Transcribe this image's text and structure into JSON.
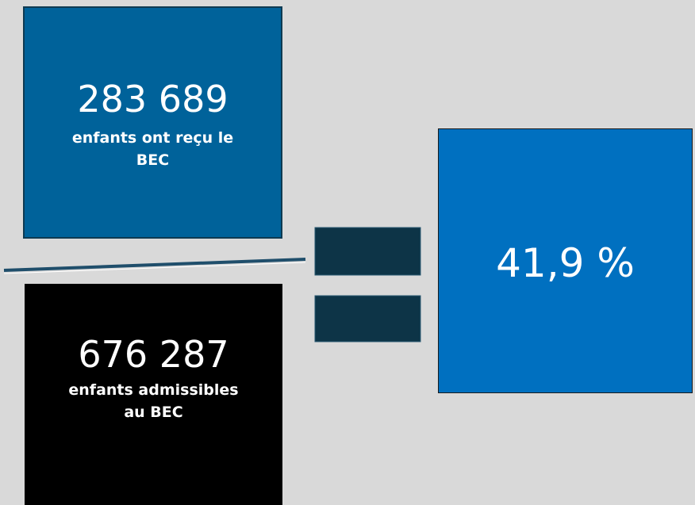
{
  "numerator": {
    "value": "283 689",
    "caption": "enfants ont reçu le BEC"
  },
  "denominator": {
    "value": "676 287",
    "caption": "enfants admissibles au BEC"
  },
  "result": {
    "value": "41,9 %"
  }
}
